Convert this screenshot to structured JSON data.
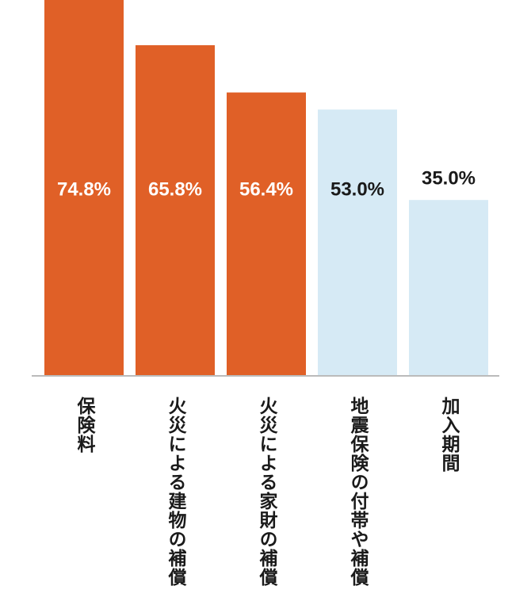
{
  "chart_data": {
    "type": "bar",
    "categories": [
      "保険料",
      "火災による建物の補償",
      "火災による家財の補償",
      "地震保険の付帯や補償",
      "加入期間"
    ],
    "values": [
      74.8,
      65.8,
      56.4,
      53.0,
      35.0
    ],
    "value_labels": [
      "74.8%",
      "65.8%",
      "56.4%",
      "53.0%",
      "35.0%"
    ],
    "value_unit": "%",
    "colors": [
      "#e06027",
      "#e06027",
      "#e06027",
      "#d6eaf5",
      "#d6eaf5"
    ],
    "label_colors": [
      "#ffffff",
      "#ffffff",
      "#ffffff",
      "#1a1a1a",
      "#1a1a1a"
    ],
    "axis_color": "#bbbbbb",
    "ylim": [
      0,
      74.8
    ],
    "grid": false,
    "legend": "none"
  }
}
